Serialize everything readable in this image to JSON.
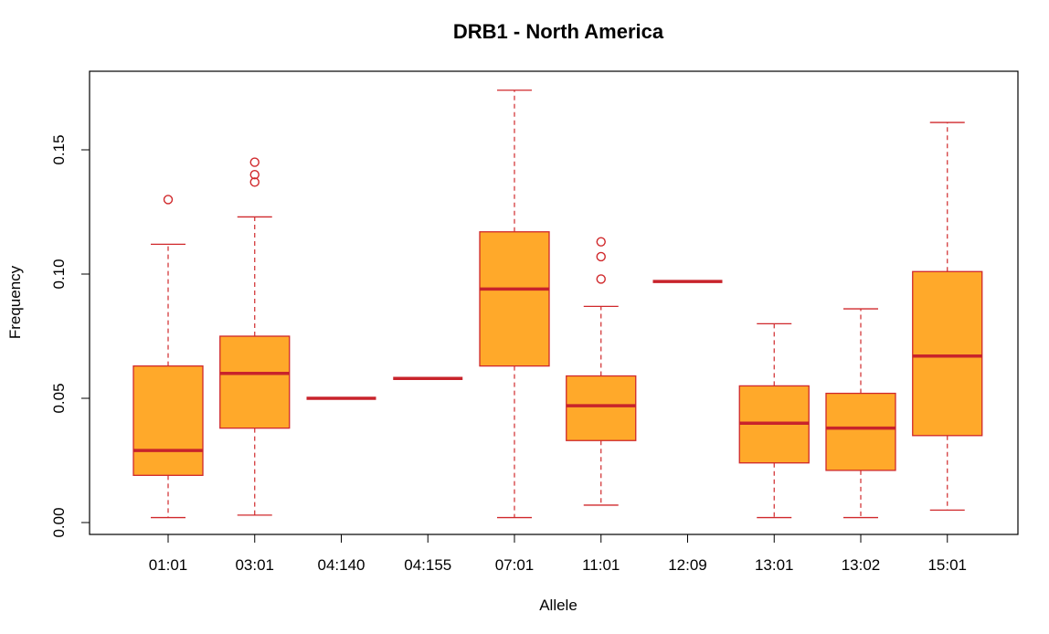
{
  "colors": {
    "box_fill": "#FFA92A",
    "box_border": "#D0282B",
    "median": "#C8232B",
    "whisker": "#D0282B",
    "outlier": "#D0282B",
    "axis": "#000000"
  },
  "chart_data": {
    "type": "box",
    "title": "DRB1 - North America",
    "xlabel": "Allele",
    "ylabel": "Frequency",
    "ylim": [
      -0.004,
      0.181
    ],
    "yticks": [
      0.0,
      0.05,
      0.1,
      0.15
    ],
    "ytick_labels": [
      "0.00",
      "0.05",
      "0.10",
      "0.15"
    ],
    "categories": [
      "01:01",
      "03:01",
      "04:140",
      "04:155",
      "07:01",
      "11:01",
      "12:09",
      "13:01",
      "13:02",
      "15:01"
    ],
    "boxes": [
      {
        "label": "01:01",
        "min": 0.002,
        "q1": 0.019,
        "median": 0.029,
        "q3": 0.063,
        "max": 0.112,
        "outliers": [
          0.13
        ]
      },
      {
        "label": "03:01",
        "min": 0.003,
        "q1": 0.038,
        "median": 0.06,
        "q3": 0.075,
        "max": 0.123,
        "outliers": [
          0.137,
          0.14,
          0.145
        ]
      },
      {
        "label": "04:140",
        "min": 0.05,
        "q1": 0.05,
        "median": 0.05,
        "q3": 0.05,
        "max": 0.05,
        "outliers": []
      },
      {
        "label": "04:155",
        "min": 0.058,
        "q1": 0.058,
        "median": 0.058,
        "q3": 0.058,
        "max": 0.058,
        "outliers": []
      },
      {
        "label": "07:01",
        "min": 0.002,
        "q1": 0.063,
        "median": 0.094,
        "q3": 0.117,
        "max": 0.174,
        "outliers": []
      },
      {
        "label": "11:01",
        "min": 0.007,
        "q1": 0.033,
        "median": 0.047,
        "q3": 0.059,
        "max": 0.087,
        "outliers": [
          0.098,
          0.107,
          0.113
        ]
      },
      {
        "label": "12:09",
        "min": 0.097,
        "q1": 0.097,
        "median": 0.097,
        "q3": 0.097,
        "max": 0.097,
        "outliers": []
      },
      {
        "label": "13:01",
        "min": 0.002,
        "q1": 0.024,
        "median": 0.04,
        "q3": 0.055,
        "max": 0.08,
        "outliers": []
      },
      {
        "label": "13:02",
        "min": 0.002,
        "q1": 0.021,
        "median": 0.038,
        "q3": 0.052,
        "max": 0.086,
        "outliers": []
      },
      {
        "label": "15:01",
        "min": 0.005,
        "q1": 0.035,
        "median": 0.067,
        "q3": 0.101,
        "max": 0.161,
        "outliers": []
      }
    ]
  }
}
